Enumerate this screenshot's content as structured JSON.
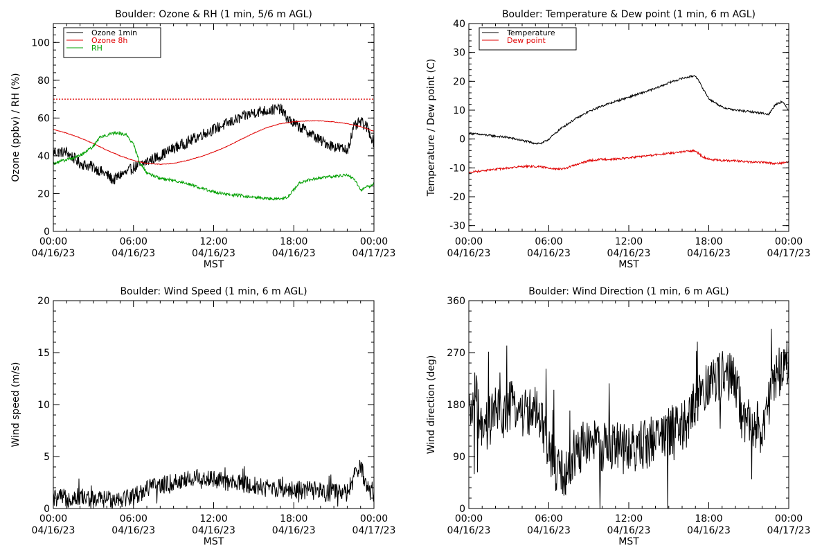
{
  "chart_data": [
    {
      "id": "ozone_rh",
      "type": "line",
      "title": "Boulder: Ozone & RH (1 min, 5/6 m AGL)",
      "ylabel": "Ozone (ppbv) / RH (%)",
      "xlabel": "MST",
      "xlim": [
        0,
        24
      ],
      "ylim": [
        0,
        110
      ],
      "yticks": [
        0,
        20,
        40,
        60,
        80,
        100
      ],
      "xticks": [
        {
          "time": "00:00",
          "date": "04/16/23"
        },
        {
          "time": "06:00",
          "date": "04/16/23"
        },
        {
          "time": "12:00",
          "date": "04/16/23"
        },
        {
          "time": "18:00",
          "date": "04/16/23"
        },
        {
          "time": "00:00",
          "date": "04/17/23"
        }
      ],
      "reference_line": {
        "y": 70,
        "color": "#e00000",
        "style": "dotted"
      },
      "legend_placement": "top-left",
      "series": [
        {
          "name": "Ozone 1min",
          "color": "#000000",
          "x": [
            0,
            1,
            2,
            3,
            4,
            4.5,
            5,
            5.5,
            6,
            6.5,
            7,
            8,
            9,
            10,
            11,
            12,
            13,
            14,
            15,
            16,
            17,
            17.5,
            18,
            18.5,
            19,
            20,
            21,
            22,
            22.5,
            23,
            23.5,
            24
          ],
          "y": [
            42,
            42,
            36,
            34,
            30,
            27,
            30,
            31,
            34,
            35,
            37,
            40,
            44,
            47,
            51,
            54,
            57,
            60,
            63,
            64,
            65,
            60,
            57,
            55,
            53,
            48,
            45,
            43,
            55,
            58,
            55,
            47
          ]
        },
        {
          "name": "Ozone 8h",
          "color": "#e00000",
          "x": [
            0,
            1,
            2,
            3,
            4,
            5,
            6,
            7,
            8,
            9,
            10,
            11,
            12,
            13,
            14,
            15,
            16,
            17,
            18,
            19,
            20,
            21,
            22,
            23,
            24
          ],
          "y": [
            54,
            52,
            49.5,
            46.5,
            43,
            40,
            37.5,
            36,
            35.5,
            36,
            37.5,
            39.5,
            42,
            45,
            48.5,
            52,
            55,
            57,
            58,
            58.5,
            58.5,
            58,
            57,
            55.5,
            53
          ]
        },
        {
          "name": "RH",
          "color": "#00a000",
          "x": [
            0,
            1,
            2,
            3,
            3.5,
            4,
            4.5,
            5,
            5.5,
            6,
            6.5,
            7,
            8,
            9,
            10,
            11,
            12,
            13,
            14,
            15,
            16,
            17,
            17.5,
            18,
            18.5,
            19,
            20,
            21,
            22,
            22.5,
            23,
            24
          ],
          "y": [
            36,
            38,
            40,
            45,
            50,
            51,
            52,
            52,
            51,
            46,
            36,
            31,
            28,
            27,
            25.5,
            23,
            21,
            19.5,
            19,
            18,
            17.5,
            17,
            18,
            22,
            26,
            27,
            28.5,
            29,
            30,
            28,
            22,
            25
          ]
        }
      ]
    },
    {
      "id": "temp_dew",
      "type": "line",
      "title": "Boulder: Temperature & Dew point (1 min, 6 m AGL)",
      "ylabel": "Temperature / Dew point (C)",
      "xlabel": "MST",
      "xlim": [
        0,
        24
      ],
      "ylim": [
        -32,
        40
      ],
      "yticks": [
        -30,
        -20,
        -10,
        0,
        10,
        20,
        30,
        40
      ],
      "xticks": [
        {
          "time": "00:00",
          "date": "04/16/23"
        },
        {
          "time": "06:00",
          "date": "04/16/23"
        },
        {
          "time": "12:00",
          "date": "04/16/23"
        },
        {
          "time": "18:00",
          "date": "04/16/23"
        },
        {
          "time": "00:00",
          "date": "04/17/23"
        }
      ],
      "legend_placement": "top-left",
      "series": [
        {
          "name": "Temperature",
          "color": "#000000",
          "x": [
            0,
            1,
            2,
            3,
            4,
            5,
            5.5,
            6,
            6.5,
            7,
            8,
            9,
            10,
            11,
            12,
            13,
            14,
            15,
            16,
            16.5,
            17,
            17.5,
            18,
            19,
            20,
            21,
            22,
            22.5,
            23,
            23.5,
            24
          ],
          "y": [
            2,
            1.5,
            1,
            0.5,
            -0.5,
            -1.5,
            -1.5,
            0,
            2,
            4,
            7,
            9.5,
            11.5,
            13,
            14.5,
            16,
            17.5,
            19.5,
            21,
            21.5,
            22,
            18,
            14,
            11,
            10,
            9.5,
            9,
            8.5,
            12,
            13,
            10
          ]
        },
        {
          "name": "Dew point",
          "color": "#e00000",
          "x": [
            0,
            1,
            2,
            3,
            4,
            5,
            6,
            7,
            8,
            9,
            10,
            11,
            12,
            13,
            14,
            15,
            16,
            17,
            17.5,
            18,
            19,
            20,
            21,
            22,
            23,
            24
          ],
          "y": [
            -11.5,
            -11,
            -10.5,
            -10,
            -9.5,
            -9.5,
            -10,
            -10.5,
            -9,
            -7.5,
            -7,
            -7,
            -6.5,
            -6,
            -5.5,
            -5,
            -4.5,
            -4,
            -6,
            -7,
            -7.5,
            -7.5,
            -8,
            -8,
            -8.5,
            -8
          ]
        }
      ]
    },
    {
      "id": "wind_speed",
      "type": "line",
      "title": "Boulder: Wind Speed (1 min, 6 m AGL)",
      "ylabel": "Wind speed (m/s)",
      "xlabel": "MST",
      "xlim": [
        0,
        24
      ],
      "ylim": [
        0,
        20
      ],
      "yticks": [
        0,
        5,
        10,
        15,
        20
      ],
      "xticks": [
        {
          "time": "00:00",
          "date": "04/16/23"
        },
        {
          "time": "06:00",
          "date": "04/16/23"
        },
        {
          "time": "12:00",
          "date": "04/16/23"
        },
        {
          "time": "18:00",
          "date": "04/16/23"
        },
        {
          "time": "00:00",
          "date": "04/17/23"
        }
      ],
      "series": [
        {
          "color": "#000000",
          "x": [
            0,
            1,
            2,
            3,
            4,
            5,
            6,
            6.5,
            7,
            8,
            9,
            10,
            11,
            12,
            13,
            14,
            15,
            16,
            17,
            18,
            19,
            20,
            21,
            22,
            22.5,
            23,
            23.5,
            24
          ],
          "y": [
            1,
            1,
            1.2,
            0.8,
            0.9,
            1,
            1.2,
            1.5,
            2,
            2.2,
            2.5,
            2.8,
            3,
            2.8,
            2.5,
            2.4,
            2.2,
            2,
            2,
            1.8,
            1.8,
            1.6,
            1.5,
            1.5,
            3,
            4,
            2,
            1.2
          ]
        }
      ]
    },
    {
      "id": "wind_dir",
      "type": "line",
      "title": "Boulder: Wind Direction (1 min, 6 m AGL)",
      "ylabel": "Wind direction (deg)",
      "xlabel": "MST",
      "xlim": [
        0,
        24
      ],
      "ylim": [
        0,
        360
      ],
      "yticks": [
        0,
        90,
        180,
        270,
        360
      ],
      "xticks": [
        {
          "time": "00:00",
          "date": "04/16/23"
        },
        {
          "time": "06:00",
          "date": "04/16/23"
        },
        {
          "time": "12:00",
          "date": "04/16/23"
        },
        {
          "time": "18:00",
          "date": "04/16/23"
        },
        {
          "time": "00:00",
          "date": "04/17/23"
        }
      ],
      "series": [
        {
          "color": "#000000",
          "x": [
            0,
            0.5,
            1,
            1.5,
            2,
            2.5,
            3,
            3.5,
            4,
            4.5,
            5,
            5.5,
            6,
            6.5,
            7,
            7.5,
            8,
            8.5,
            9,
            10,
            11,
            12,
            13,
            14,
            15,
            16,
            16.5,
            17,
            17.5,
            18,
            19,
            20,
            20.5,
            21,
            22,
            22.5,
            23,
            23.5,
            24
          ],
          "y": [
            150,
            200,
            120,
            150,
            170,
            160,
            175,
            180,
            165,
            170,
            165,
            140,
            100,
            70,
            60,
            65,
            100,
            110,
            115,
            105,
            110,
            100,
            110,
            120,
            135,
            140,
            150,
            190,
            200,
            215,
            230,
            220,
            160,
            150,
            140,
            180,
            220,
            250,
            260
          ]
        }
      ]
    }
  ]
}
